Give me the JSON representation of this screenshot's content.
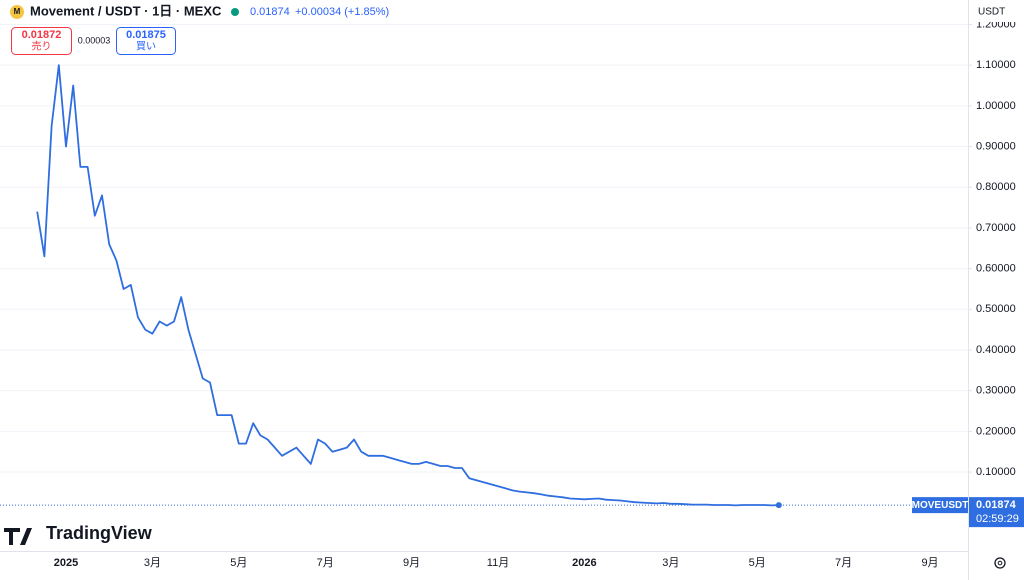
{
  "header": {
    "title": "Movement / USDT · 1日 · MEXC",
    "change": "+0.00034 (+1.85%)",
    "sell_price": "0.01872",
    "sell_label": "売り",
    "spread": "0.00003",
    "buy_price": "0.01875",
    "buy_label": "買い",
    "currency": "USDT",
    "countdown": "02:59:29",
    "logo": "TradingView"
  },
  "chart_data": {
    "type": "line",
    "grid": true,
    "scale": "USDT",
    "categories": [
      null,
      null,
      null,
      null,
      "2025",
      null,
      null,
      null,
      null,
      null,
      null,
      null,
      null,
      null,
      null,
      null,
      "3月",
      null,
      null,
      null,
      null,
      null,
      null,
      null,
      null,
      null,
      null,
      null,
      "5月",
      null,
      null,
      null,
      null,
      null,
      null,
      null,
      null,
      null,
      null,
      null,
      "7月",
      null,
      null,
      null,
      null,
      null,
      null,
      null,
      null,
      null,
      null,
      null,
      "9月",
      null,
      null,
      null,
      null,
      null,
      null,
      null,
      null,
      null,
      null,
      null,
      "11月",
      null,
      null,
      null,
      null,
      null,
      null,
      null,
      null,
      null,
      null,
      null,
      "2026",
      null,
      null,
      null,
      null,
      null,
      null,
      null,
      null,
      null,
      null,
      null,
      "3月",
      null,
      null,
      null,
      null,
      null,
      null,
      null,
      null,
      null,
      null,
      null,
      "5月",
      null,
      null,
      null,
      null,
      null,
      null,
      null,
      null,
      null,
      null,
      null,
      "7月",
      null,
      null,
      null,
      null,
      null,
      null,
      null,
      null,
      null,
      null,
      null,
      "9月",
      null,
      null,
      null,
      null,
      null
    ],
    "series": [
      {
        "name": "MOVEUSDT",
        "color": "#2f6ee0",
        "values": [
          0.74,
          0.63,
          0.95,
          1.1,
          0.9,
          1.05,
          0.85,
          0.85,
          0.73,
          0.78,
          0.66,
          0.62,
          0.55,
          0.56,
          0.48,
          0.45,
          0.44,
          0.47,
          0.46,
          0.47,
          0.53,
          0.45,
          0.39,
          0.33,
          0.32,
          0.24,
          0.24,
          0.24,
          0.17,
          0.17,
          0.22,
          0.19,
          0.18,
          0.16,
          0.14,
          0.15,
          0.16,
          0.14,
          0.12,
          0.18,
          0.17,
          0.15,
          0.155,
          0.16,
          0.18,
          0.15,
          0.14,
          0.14,
          0.14,
          0.135,
          0.13,
          0.125,
          0.12,
          0.12,
          0.125,
          0.12,
          0.115,
          0.115,
          0.11,
          0.11,
          0.085,
          0.08,
          0.075,
          0.07,
          0.065,
          0.06,
          0.055,
          0.052,
          0.05,
          0.048,
          0.045,
          0.042,
          0.04,
          0.038,
          0.035,
          0.034,
          0.033,
          0.034,
          0.035,
          0.032,
          0.031,
          0.03,
          0.028,
          0.026,
          0.025,
          0.024,
          0.023,
          0.024,
          0.022,
          0.022,
          0.021,
          0.02,
          0.02,
          0.02,
          0.019,
          0.019,
          0.019,
          0.018,
          0.019,
          0.019,
          0.019,
          0.019,
          0.018,
          0.01874,
          null,
          null,
          null,
          null,
          null,
          null,
          null,
          null,
          null,
          null,
          null,
          null,
          null,
          null,
          null,
          null,
          null,
          null,
          null,
          null,
          null,
          null,
          null,
          null,
          null,
          null
        ]
      }
    ],
    "ylim": [
      -0.094,
      1.211
    ],
    "yticks": [
      {
        "value": 0.1,
        "label": "0.10000"
      },
      {
        "value": 0.2,
        "label": "0.20000"
      },
      {
        "value": 0.3,
        "label": "0.30000"
      },
      {
        "value": 0.4,
        "label": "0.40000"
      },
      {
        "value": 0.5,
        "label": "0.50000"
      },
      {
        "value": 0.6,
        "label": "0.60000"
      },
      {
        "value": 0.7,
        "label": "0.70000"
      },
      {
        "value": 0.8,
        "label": "0.80000"
      },
      {
        "value": 0.9,
        "label": "0.90000"
      },
      {
        "value": 1.0,
        "label": "1.00000"
      },
      {
        "value": 1.1,
        "label": "1.10000"
      },
      {
        "value": 1.2,
        "label": "1.20000"
      }
    ]
  }
}
